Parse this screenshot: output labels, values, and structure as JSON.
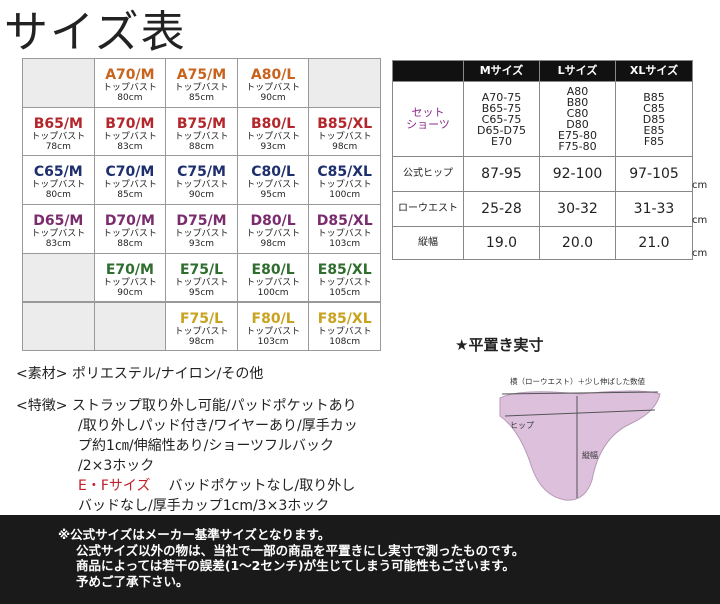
{
  "title": "サイズ表",
  "grid": {
    "row_colors": [
      "#c8641e",
      "#b3262b",
      "#1e2f6e",
      "#7b2c6e",
      "#2f6e2f",
      "#c9a21e"
    ],
    "rows": [
      [
        null,
        {
          "size": "A70/M",
          "label": "トップバスト",
          "bust": "80cm"
        },
        {
          "size": "A75/M",
          "label": "トップバスト",
          "bust": "85cm"
        },
        {
          "size": "A80/L",
          "label": "トップバスト",
          "bust": "90cm"
        },
        null
      ],
      [
        {
          "size": "B65/M",
          "label": "トップバスト",
          "bust": "78cm"
        },
        {
          "size": "B70/M",
          "label": "トップバスト",
          "bust": "83cm"
        },
        {
          "size": "B75/M",
          "label": "トップバスト",
          "bust": "88cm"
        },
        {
          "size": "B80/L",
          "label": "トップバスト",
          "bust": "93cm"
        },
        {
          "size": "B85/XL",
          "label": "トップバスト",
          "bust": "98cm"
        }
      ],
      [
        {
          "size": "C65/M",
          "label": "トップバスト",
          "bust": "80cm"
        },
        {
          "size": "C70/M",
          "label": "トップバスト",
          "bust": "85cm"
        },
        {
          "size": "C75/M",
          "label": "トップバスト",
          "bust": "90cm"
        },
        {
          "size": "C80/L",
          "label": "トップバスト",
          "bust": "95cm"
        },
        {
          "size": "C85/XL",
          "label": "トップバスト",
          "bust": "100cm"
        }
      ],
      [
        {
          "size": "D65/M",
          "label": "トップバスト",
          "bust": "83cm"
        },
        {
          "size": "D70/M",
          "label": "トップバスト",
          "bust": "88cm"
        },
        {
          "size": "D75/M",
          "label": "トップバスト",
          "bust": "93cm"
        },
        {
          "size": "D80/L",
          "label": "トップバスト",
          "bust": "98cm"
        },
        {
          "size": "D85/XL",
          "label": "トップバスト",
          "bust": "103cm"
        }
      ],
      [
        null,
        {
          "size": "E70/M",
          "label": "トップバスト",
          "bust": "90cm"
        },
        {
          "size": "E75/L",
          "label": "トップバスト",
          "bust": "95cm"
        },
        {
          "size": "E80/L",
          "label": "トップバスト",
          "bust": "100cm"
        },
        {
          "size": "E85/XL",
          "label": "トップバスト",
          "bust": "105cm"
        }
      ],
      [
        null,
        null,
        {
          "size": "F75/L",
          "label": "トップバスト",
          "bust": "98cm"
        },
        {
          "size": "F80/L",
          "label": "トップバスト",
          "bust": "103cm"
        },
        {
          "size": "F85/XL",
          "label": "トップバスト",
          "bust": "108cm"
        }
      ]
    ]
  },
  "table": {
    "header": [
      "Mサイズ",
      "Lサイズ",
      "XLサイズ"
    ],
    "rows": [
      {
        "label": [
          "セット",
          "ショーツ"
        ],
        "cells": [
          [
            "A70-75",
            "B65-75",
            "C65-75",
            "D65-D75",
            "E70"
          ],
          [
            "A80",
            "B80",
            "C80",
            "D80",
            "E75-80",
            "F75-80"
          ],
          [
            "B85",
            "C85",
            "D85",
            "E85",
            "F85"
          ]
        ]
      },
      {
        "label": [
          "公式ヒップ"
        ],
        "cells": [
          [
            "87-95"
          ],
          [
            "92-100"
          ],
          [
            "97-105"
          ]
        ],
        "unit": "cm"
      },
      {
        "label": [
          "ローウエスト"
        ],
        "cells": [
          [
            "25-28"
          ],
          [
            "30-32"
          ],
          [
            "31-33"
          ]
        ],
        "unit": "cm"
      },
      {
        "label": [
          "縦幅"
        ],
        "cells": [
          [
            "19.0"
          ],
          [
            "20.0"
          ],
          [
            "21.0"
          ]
        ],
        "unit": "cm"
      }
    ]
  },
  "material": {
    "label": "<素材>",
    "text": "ポリエステル/ナイロン/その他"
  },
  "features": {
    "label": "<特徴>",
    "lines": [
      "ストラップ取り外し可能/パッドポケットあり",
      "/取り外しパッド付き/ワイヤーあり/厚手カッ",
      "プ約1㎝/伸縮性あり/ショーツフルバック",
      "/2×3ホック"
    ],
    "size_note": {
      "label": "E・Fサイズ",
      "lines": [
        "バッドポケットなし/取り外し",
        "バッドなし/厚手カップ1cm/3×3ホック"
      ]
    }
  },
  "diagram": {
    "title": "★平置き実寸",
    "width_label": "横（ローウエスト）＋少し伸ばした数値",
    "hip_label": "ヒップ",
    "height_label": "縦幅"
  },
  "footer": [
    "※公式サイズはメーカー基準サイズとなります。",
    "公式サイズ以外の物は、当社で一部の商品を平置きにし実寸で測ったものです。",
    "商品によっては若干の誤差(1～2センチ)が生じてしまう可能性もございます。",
    "予めご了承下さい。"
  ]
}
